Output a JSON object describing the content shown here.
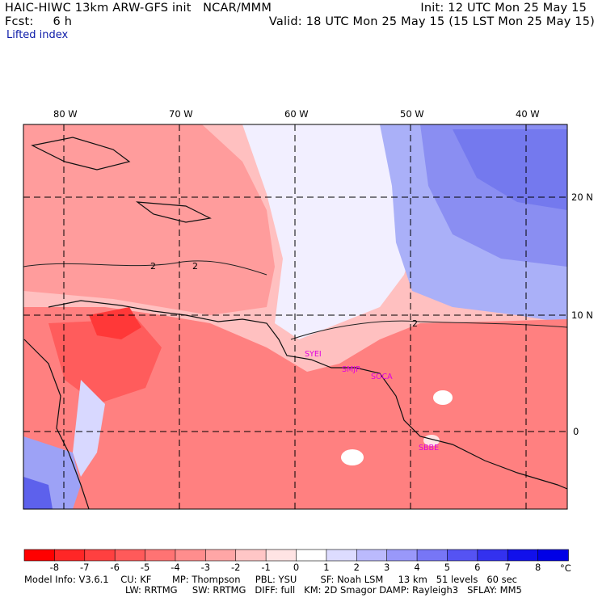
{
  "header": {
    "title": "HAIC-HIWC 13km ARW-GFS init   NCAR/MMM",
    "init": "Init: 12 UTC Mon 25 May 15",
    "fcst": "Fcst:     6 h",
    "valid": "Valid: 18 UTC Mon 25 May 15 (15 LST Mon 25 May 15)",
    "field": "Lifted index"
  },
  "map": {
    "lon_labels": [
      "80 W",
      "70 W",
      "60 W",
      "50 W",
      "40 W"
    ],
    "lat_labels": [
      "20 N",
      "10 N",
      "0"
    ],
    "stations": [
      "SYEI",
      "SMJP",
      "SOCA",
      "SBBE"
    ],
    "contour_labels": [
      "2",
      "2",
      "2"
    ]
  },
  "colorbar": {
    "labels": [
      "-8",
      "-7",
      "-6",
      "-5",
      "-4",
      "-3",
      "-2",
      "-1",
      "0",
      "1",
      "2",
      "3",
      "4",
      "5",
      "6",
      "7",
      "8"
    ],
    "unit": "°C",
    "colors": [
      "#ff0000",
      "#ff2626",
      "#ff4040",
      "#ff5a5a",
      "#ff7373",
      "#ff8d8d",
      "#ffa6a6",
      "#ffc6c6",
      "#ffe4e4",
      "#ffffff",
      "#dddcff",
      "#bbbafd",
      "#9998fa",
      "#7776f6",
      "#5553f3",
      "#3331ef",
      "#1110eb",
      "#0000e6"
    ]
  },
  "model_info": {
    "line1": "Model Info: V3.6.1    CU: KF       MP: Thompson     PBL: YSU        SF: Noah LSM     13 km   51 levels   60 sec",
    "line2": "LW: RRTMG     SW: RRTMG   DIFF: full   KM: 2D Smagor DAMP: Rayleigh3   SFLAY: MM5"
  }
}
